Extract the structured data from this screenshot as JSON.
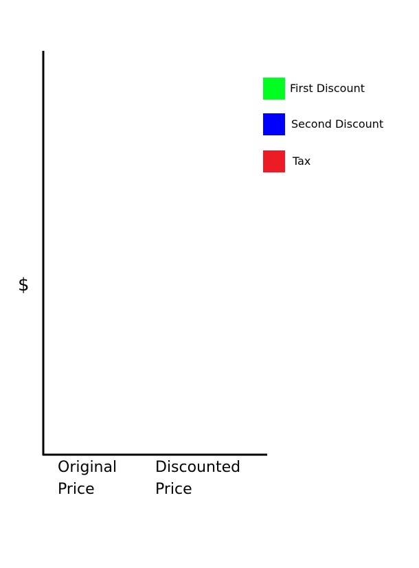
{
  "chart_data": {
    "type": "bar",
    "y_label": "$",
    "categories": [
      "Original Price",
      "Discounted Price"
    ],
    "series": [
      {
        "name": "First Discount",
        "color": "#00ff21"
      },
      {
        "name": "Second Discount",
        "color": "#0000ff"
      },
      {
        "name": "Tax",
        "color": "#ed1c24"
      }
    ]
  }
}
